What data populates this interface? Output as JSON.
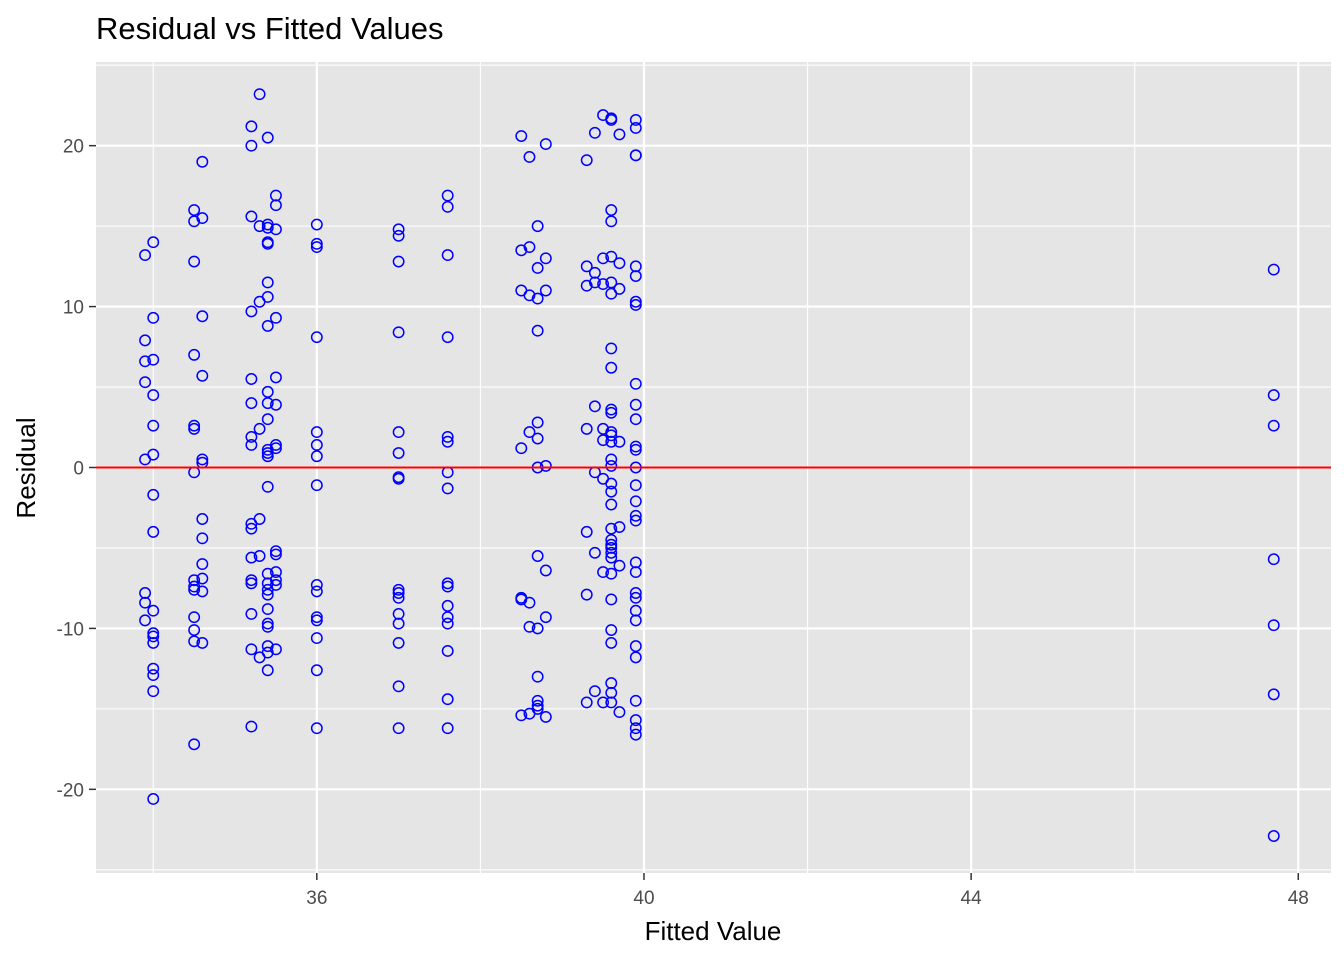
{
  "chart_data": {
    "type": "scatter",
    "title": "Residual vs Fitted Values",
    "xlabel": "Fitted Value",
    "ylabel": "Residual",
    "xlim": [
      33.3,
      48.4
    ],
    "ylim": [
      -25.2,
      25.2
    ],
    "x_ticks": [
      36,
      40,
      44,
      48
    ],
    "y_ticks": [
      -20,
      -10,
      0,
      10,
      20
    ],
    "x_tick_labels": [
      "36",
      "40",
      "44",
      "48"
    ],
    "y_tick_labels": [
      "-20",
      "-10",
      "0",
      "10",
      "20"
    ],
    "grid": true,
    "legend": "none",
    "colors": {
      "panel_background": "#E5E5E5",
      "grid": "#FFFFFF",
      "point": "#0000FF",
      "reference_line": "#FF0000"
    },
    "reference_line": {
      "orientation": "horizontal",
      "y": 0
    },
    "series": [
      {
        "marker": "open-circle",
        "points": [
          [
            33.9,
            13.2
          ],
          [
            33.9,
            7.9
          ],
          [
            33.9,
            6.6
          ],
          [
            33.9,
            5.3
          ],
          [
            33.9,
            0.5
          ],
          [
            33.9,
            -7.8
          ],
          [
            33.9,
            -8.4
          ],
          [
            33.9,
            -9.5
          ],
          [
            34.0,
            14.0
          ],
          [
            34.0,
            9.3
          ],
          [
            34.0,
            6.7
          ],
          [
            34.0,
            4.5
          ],
          [
            34.0,
            2.6
          ],
          [
            34.0,
            0.8
          ],
          [
            34.0,
            -1.7
          ],
          [
            34.0,
            -4.0
          ],
          [
            34.0,
            -8.9
          ],
          [
            34.0,
            -10.3
          ],
          [
            34.0,
            -10.5
          ],
          [
            34.0,
            -10.9
          ],
          [
            34.0,
            -12.5
          ],
          [
            34.0,
            -12.9
          ],
          [
            34.0,
            -13.9
          ],
          [
            34.0,
            -20.6
          ],
          [
            34.5,
            16.0
          ],
          [
            34.5,
            15.3
          ],
          [
            34.5,
            12.8
          ],
          [
            34.5,
            7.0
          ],
          [
            34.5,
            2.6
          ],
          [
            34.5,
            2.4
          ],
          [
            34.5,
            -0.3
          ],
          [
            34.5,
            -7.0
          ],
          [
            34.5,
            -7.4
          ],
          [
            34.5,
            -7.6
          ],
          [
            34.5,
            -9.3
          ],
          [
            34.5,
            -10.1
          ],
          [
            34.5,
            -10.8
          ],
          [
            34.5,
            -17.2
          ],
          [
            34.6,
            19.0
          ],
          [
            34.6,
            15.5
          ],
          [
            34.6,
            9.4
          ],
          [
            34.6,
            5.7
          ],
          [
            34.6,
            0.5
          ],
          [
            34.6,
            0.3
          ],
          [
            34.6,
            -3.2
          ],
          [
            34.6,
            -4.4
          ],
          [
            34.6,
            -6.0
          ],
          [
            34.6,
            -6.9
          ],
          [
            34.6,
            -7.7
          ],
          [
            34.6,
            -10.9
          ],
          [
            35.2,
            21.2
          ],
          [
            35.2,
            20.0
          ],
          [
            35.2,
            15.6
          ],
          [
            35.2,
            9.7
          ],
          [
            35.2,
            5.5
          ],
          [
            35.2,
            4.0
          ],
          [
            35.2,
            1.9
          ],
          [
            35.2,
            1.4
          ],
          [
            35.2,
            -3.5
          ],
          [
            35.2,
            -3.8
          ],
          [
            35.2,
            -5.6
          ],
          [
            35.2,
            -7.0
          ],
          [
            35.2,
            -7.2
          ],
          [
            35.2,
            -9.1
          ],
          [
            35.2,
            -11.3
          ],
          [
            35.2,
            -16.1
          ],
          [
            35.3,
            23.2
          ],
          [
            35.3,
            15.0
          ],
          [
            35.3,
            10.3
          ],
          [
            35.3,
            2.4
          ],
          [
            35.3,
            -3.2
          ],
          [
            35.3,
            -5.5
          ],
          [
            35.3,
            -11.8
          ],
          [
            35.4,
            20.5
          ],
          [
            35.4,
            15.1
          ],
          [
            35.4,
            14.9
          ],
          [
            35.4,
            14.0
          ],
          [
            35.4,
            13.9
          ],
          [
            35.4,
            11.5
          ],
          [
            35.4,
            10.6
          ],
          [
            35.4,
            8.8
          ],
          [
            35.4,
            4.7
          ],
          [
            35.4,
            4.0
          ],
          [
            35.4,
            3.0
          ],
          [
            35.4,
            1.1
          ],
          [
            35.4,
            0.9
          ],
          [
            35.4,
            0.7
          ],
          [
            35.4,
            -1.2
          ],
          [
            35.4,
            -6.6
          ],
          [
            35.4,
            -7.2
          ],
          [
            35.4,
            -7.6
          ],
          [
            35.4,
            -7.9
          ],
          [
            35.4,
            -8.8
          ],
          [
            35.4,
            -9.7
          ],
          [
            35.4,
            -9.9
          ],
          [
            35.4,
            -11.1
          ],
          [
            35.4,
            -11.5
          ],
          [
            35.4,
            -12.6
          ],
          [
            35.5,
            16.9
          ],
          [
            35.5,
            16.3
          ],
          [
            35.5,
            14.8
          ],
          [
            35.5,
            9.3
          ],
          [
            35.5,
            5.6
          ],
          [
            35.5,
            3.9
          ],
          [
            35.5,
            1.4
          ],
          [
            35.5,
            1.2
          ],
          [
            35.5,
            -5.2
          ],
          [
            35.5,
            -5.4
          ],
          [
            35.5,
            -6.5
          ],
          [
            35.5,
            -7.0
          ],
          [
            35.5,
            -7.3
          ],
          [
            35.5,
            -11.3
          ],
          [
            36.0,
            15.1
          ],
          [
            36.0,
            13.9
          ],
          [
            36.0,
            13.7
          ],
          [
            36.0,
            8.1
          ],
          [
            36.0,
            2.2
          ],
          [
            36.0,
            1.4
          ],
          [
            36.0,
            0.7
          ],
          [
            36.0,
            -1.1
          ],
          [
            36.0,
            -7.3
          ],
          [
            36.0,
            -7.7
          ],
          [
            36.0,
            -9.3
          ],
          [
            36.0,
            -9.5
          ],
          [
            36.0,
            -10.6
          ],
          [
            36.0,
            -12.6
          ],
          [
            36.0,
            -16.2
          ],
          [
            37.0,
            14.8
          ],
          [
            37.0,
            14.4
          ],
          [
            37.0,
            12.8
          ],
          [
            37.0,
            8.4
          ],
          [
            37.0,
            2.2
          ],
          [
            37.0,
            0.9
          ],
          [
            37.0,
            -0.6
          ],
          [
            37.0,
            -0.7
          ],
          [
            37.0,
            -7.6
          ],
          [
            37.0,
            -7.8
          ],
          [
            37.0,
            -8.1
          ],
          [
            37.0,
            -9.1
          ],
          [
            37.0,
            -9.7
          ],
          [
            37.0,
            -10.9
          ],
          [
            37.0,
            -13.6
          ],
          [
            37.0,
            -16.2
          ],
          [
            37.6,
            16.9
          ],
          [
            37.6,
            16.2
          ],
          [
            37.6,
            13.2
          ],
          [
            37.6,
            8.1
          ],
          [
            37.6,
            1.9
          ],
          [
            37.6,
            1.6
          ],
          [
            37.6,
            -0.3
          ],
          [
            37.6,
            -1.3
          ],
          [
            37.6,
            -7.2
          ],
          [
            37.6,
            -7.4
          ],
          [
            37.6,
            -8.6
          ],
          [
            37.6,
            -9.3
          ],
          [
            37.6,
            -9.7
          ],
          [
            37.6,
            -11.4
          ],
          [
            37.6,
            -14.4
          ],
          [
            37.6,
            -16.2
          ],
          [
            38.5,
            20.6
          ],
          [
            38.5,
            13.5
          ],
          [
            38.5,
            11.0
          ],
          [
            38.5,
            1.2
          ],
          [
            38.5,
            -8.1
          ],
          [
            38.5,
            -8.2
          ],
          [
            38.5,
            -15.4
          ],
          [
            38.6,
            19.3
          ],
          [
            38.6,
            13.7
          ],
          [
            38.6,
            10.7
          ],
          [
            38.6,
            2.2
          ],
          [
            38.6,
            -8.4
          ],
          [
            38.6,
            -9.9
          ],
          [
            38.6,
            -15.3
          ],
          [
            38.7,
            15.0
          ],
          [
            38.7,
            12.4
          ],
          [
            38.7,
            10.5
          ],
          [
            38.7,
            8.5
          ],
          [
            38.7,
            2.8
          ],
          [
            38.7,
            1.8
          ],
          [
            38.7,
            0.0
          ],
          [
            38.7,
            -5.5
          ],
          [
            38.7,
            -10.0
          ],
          [
            38.7,
            -13.0
          ],
          [
            38.7,
            -14.5
          ],
          [
            38.7,
            -14.8
          ],
          [
            38.7,
            -15.0
          ],
          [
            38.8,
            20.1
          ],
          [
            38.8,
            13.0
          ],
          [
            38.8,
            11.0
          ],
          [
            38.8,
            0.1
          ],
          [
            38.8,
            -6.4
          ],
          [
            38.8,
            -9.3
          ],
          [
            38.8,
            -15.5
          ],
          [
            39.3,
            19.1
          ],
          [
            39.3,
            12.5
          ],
          [
            39.3,
            11.3
          ],
          [
            39.3,
            2.4
          ],
          [
            39.3,
            -4.0
          ],
          [
            39.3,
            -7.9
          ],
          [
            39.3,
            -14.6
          ],
          [
            39.4,
            20.8
          ],
          [
            39.4,
            12.1
          ],
          [
            39.4,
            11.5
          ],
          [
            39.4,
            3.8
          ],
          [
            39.4,
            -0.3
          ],
          [
            39.4,
            -5.3
          ],
          [
            39.4,
            -13.9
          ],
          [
            39.5,
            21.9
          ],
          [
            39.5,
            13.0
          ],
          [
            39.5,
            11.4
          ],
          [
            39.5,
            2.4
          ],
          [
            39.5,
            1.7
          ],
          [
            39.5,
            -0.7
          ],
          [
            39.5,
            -6.5
          ],
          [
            39.5,
            -14.6
          ],
          [
            39.6,
            21.7
          ],
          [
            39.6,
            21.6
          ],
          [
            39.6,
            16.0
          ],
          [
            39.6,
            15.3
          ],
          [
            39.6,
            13.1
          ],
          [
            39.6,
            11.5
          ],
          [
            39.6,
            10.8
          ],
          [
            39.6,
            7.4
          ],
          [
            39.6,
            6.2
          ],
          [
            39.6,
            3.6
          ],
          [
            39.6,
            3.4
          ],
          [
            39.6,
            2.2
          ],
          [
            39.6,
            2.0
          ],
          [
            39.6,
            1.6
          ],
          [
            39.6,
            0.5
          ],
          [
            39.6,
            0.1
          ],
          [
            39.6,
            -1.0
          ],
          [
            39.6,
            -1.5
          ],
          [
            39.6,
            -2.3
          ],
          [
            39.6,
            -3.8
          ],
          [
            39.6,
            -4.5
          ],
          [
            39.6,
            -4.8
          ],
          [
            39.6,
            -5.0
          ],
          [
            39.6,
            -5.3
          ],
          [
            39.6,
            -5.6
          ],
          [
            39.6,
            -6.6
          ],
          [
            39.6,
            -8.2
          ],
          [
            39.6,
            -10.1
          ],
          [
            39.6,
            -10.9
          ],
          [
            39.6,
            -13.4
          ],
          [
            39.6,
            -14.0
          ],
          [
            39.6,
            -14.6
          ],
          [
            39.7,
            20.7
          ],
          [
            39.7,
            12.7
          ],
          [
            39.7,
            11.1
          ],
          [
            39.7,
            1.6
          ],
          [
            39.7,
            -3.7
          ],
          [
            39.7,
            -6.1
          ],
          [
            39.7,
            -15.2
          ],
          [
            39.9,
            21.6
          ],
          [
            39.9,
            21.1
          ],
          [
            39.9,
            19.4
          ],
          [
            39.9,
            19.4
          ],
          [
            39.9,
            12.5
          ],
          [
            39.9,
            11.9
          ],
          [
            39.9,
            10.3
          ],
          [
            39.9,
            10.1
          ],
          [
            39.9,
            5.2
          ],
          [
            39.9,
            3.9
          ],
          [
            39.9,
            3.0
          ],
          [
            39.9,
            1.3
          ],
          [
            39.9,
            1.1
          ],
          [
            39.9,
            0.0
          ],
          [
            39.9,
            -1.1
          ],
          [
            39.9,
            -2.1
          ],
          [
            39.9,
            -3.0
          ],
          [
            39.9,
            -3.3
          ],
          [
            39.9,
            -5.9
          ],
          [
            39.9,
            -6.5
          ],
          [
            39.9,
            -7.8
          ],
          [
            39.9,
            -8.1
          ],
          [
            39.9,
            -8.9
          ],
          [
            39.9,
            -9.5
          ],
          [
            39.9,
            -11.1
          ],
          [
            39.9,
            -11.8
          ],
          [
            39.9,
            -14.5
          ],
          [
            39.9,
            -15.7
          ],
          [
            39.9,
            -16.2
          ],
          [
            39.9,
            -16.6
          ],
          [
            47.7,
            12.3
          ],
          [
            47.7,
            4.5
          ],
          [
            47.7,
            2.6
          ],
          [
            47.7,
            -5.7
          ],
          [
            47.7,
            -9.8
          ],
          [
            47.7,
            -14.1
          ],
          [
            47.7,
            -22.9
          ]
        ]
      }
    ]
  }
}
